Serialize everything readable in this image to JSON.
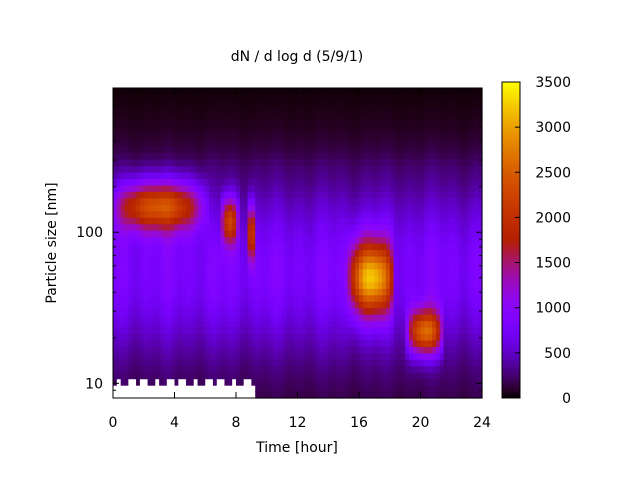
{
  "chart_data": {
    "type": "heatmap",
    "title": "dN / d log d (5/9/1)",
    "xlabel": "Time [hour]",
    "ylabel": "Particle size [nm]",
    "x_range": [
      0,
      24
    ],
    "y_range_nm": [
      8,
      900
    ],
    "y_scale": "log",
    "x_ticks": [
      0,
      4,
      8,
      12,
      16,
      20,
      24
    ],
    "x_tick_labels": [
      "0",
      "4",
      "8",
      "12",
      "16",
      "20",
      "24"
    ],
    "y_ticks": [
      10,
      100
    ],
    "y_tick_labels": [
      "10",
      "100"
    ],
    "colorbar": {
      "range": [
        0,
        3500
      ],
      "ticks": [
        0,
        500,
        1000,
        1500,
        2000,
        2500,
        3000,
        3500
      ],
      "tick_labels": [
        "0",
        "500",
        "1000",
        "1500",
        "2000",
        "2500",
        "3000",
        "3500"
      ],
      "colormap": "gnuplot-pm3d-black-purple-red-yellow",
      "placement": "right"
    },
    "background_level": 850,
    "modes": [
      {
        "time_start": 0.0,
        "time_end": 6.5,
        "peak_time": 3.0,
        "center_nm": 150,
        "width_dex": 0.16,
        "peak_value": 2450
      },
      {
        "time_start": 7.0,
        "time_end": 8.3,
        "peak_time": 7.6,
        "center_nm": 120,
        "width_dex": 0.15,
        "peak_value": 2100
      },
      {
        "time_start": 8.7,
        "time_end": 9.4,
        "peak_time": 9.0,
        "center_nm": 100,
        "width_dex": 0.18,
        "peak_value": 2000
      },
      {
        "time_start": 15.0,
        "time_end": 18.3,
        "peak_time": 16.8,
        "center_nm": 50,
        "width_dex": 0.24,
        "peak_value": 2900
      },
      {
        "time_start": 19.0,
        "time_end": 21.6,
        "peak_time": 20.3,
        "center_nm": 22,
        "width_dex": 0.15,
        "peak_value": 2600
      }
    ],
    "missing_data_below_nm": 11,
    "missing_data_time_range": [
      0,
      9.3
    ]
  }
}
